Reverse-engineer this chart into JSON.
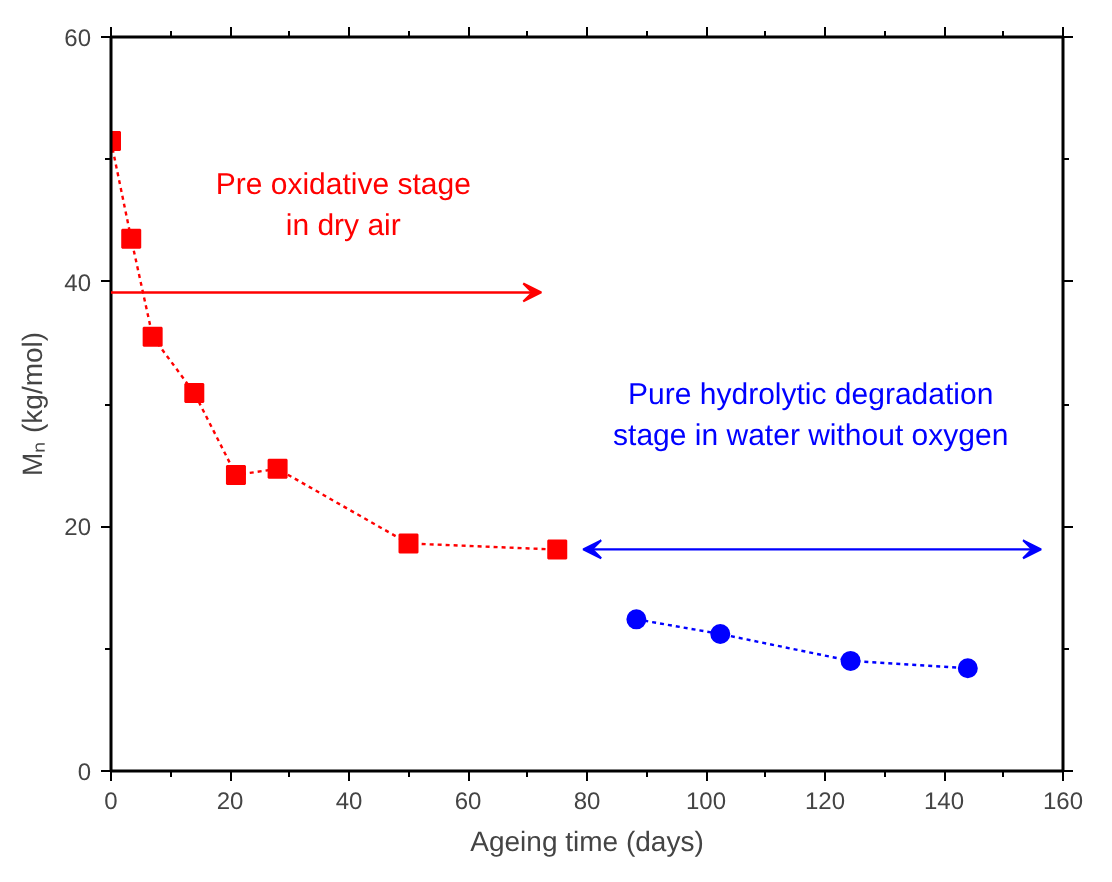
{
  "chart_data": {
    "type": "line",
    "xlabel": "Ageing time (days)",
    "ylabel": "Mₙ (kg/mol)",
    "xlim": [
      0,
      160
    ],
    "ylim": [
      0,
      60
    ],
    "xticks": [
      0,
      20,
      40,
      60,
      80,
      100,
      120,
      140,
      160
    ],
    "yticks": [
      0,
      20,
      40,
      60
    ],
    "grid": false,
    "line_style": "dotted",
    "series": [
      {
        "color": "#ff0000",
        "marker": "square",
        "x": [
          0,
          3.4,
          7,
          14,
          21,
          28,
          50,
          75
        ],
        "values": [
          51.5,
          43.5,
          35.5,
          30.9,
          24.2,
          24.7,
          18.6,
          18.1
        ]
      },
      {
        "color": "#0000ff",
        "marker": "circle",
        "x": [
          88.3,
          102.4,
          124.3,
          144
        ],
        "values": [
          12.4,
          11.2,
          9.0,
          8.4
        ]
      }
    ],
    "annotations": [
      "Pre oxidative stage\nin dry air",
      "Pure hydrolytic degradation\nstage in water without oxygen"
    ]
  }
}
